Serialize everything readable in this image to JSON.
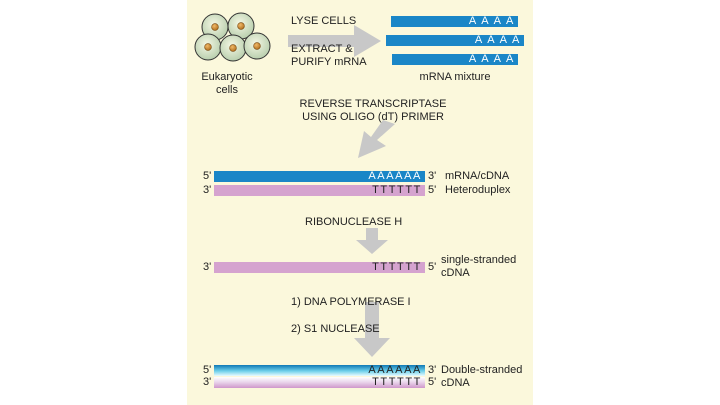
{
  "cells": {
    "label_line1": "Eukaryotic",
    "label_line2": "cells"
  },
  "step1": {
    "lyse": "LYSE CELLS",
    "extract_line1": "EXTRACT &",
    "extract_line2": "PURIFY mRNA"
  },
  "mrna_mixture": {
    "label": "mRNA mixture",
    "tails": [
      "A A A A",
      "A A A A",
      "A A A A"
    ]
  },
  "step2": {
    "line1": "REVERSE TRANSCRIPTASE",
    "line2": "USING OLIGO (dT) PRIMER"
  },
  "heteroduplex": {
    "top_left": "5'",
    "top_right": "3'",
    "top_seq": "AAAAAA",
    "bottom_left": "3'",
    "bottom_right": "5'",
    "bottom_seq": "TTTTTT",
    "label_line1": "mRNA/cDNA",
    "label_line2": "Heteroduplex"
  },
  "step3": {
    "label": "RIBONUCLEASE H"
  },
  "single_strand": {
    "left": "3'",
    "right": "5'",
    "seq": "TTTTTT",
    "label_line1": "single-stranded",
    "label_line2": "cDNA"
  },
  "step4": {
    "line1": "1)  DNA POLYMERASE I",
    "line2": "2)  S1 NUCLEASE"
  },
  "double_strand": {
    "top_left": "5'",
    "top_right": "3'",
    "top_seq": "AAAAAA",
    "bottom_left": "3'",
    "bottom_right": "5'",
    "bottom_seq": "TTTTTT",
    "label_line1": "Double-stranded",
    "label_line2": "cDNA"
  },
  "colors": {
    "mrna": "#1a86c7",
    "cdna": "#d5a3cf",
    "arrow": "#c8c8c8",
    "panel": "#fbf8dc",
    "cell_nucleus": "#c98a3c"
  }
}
